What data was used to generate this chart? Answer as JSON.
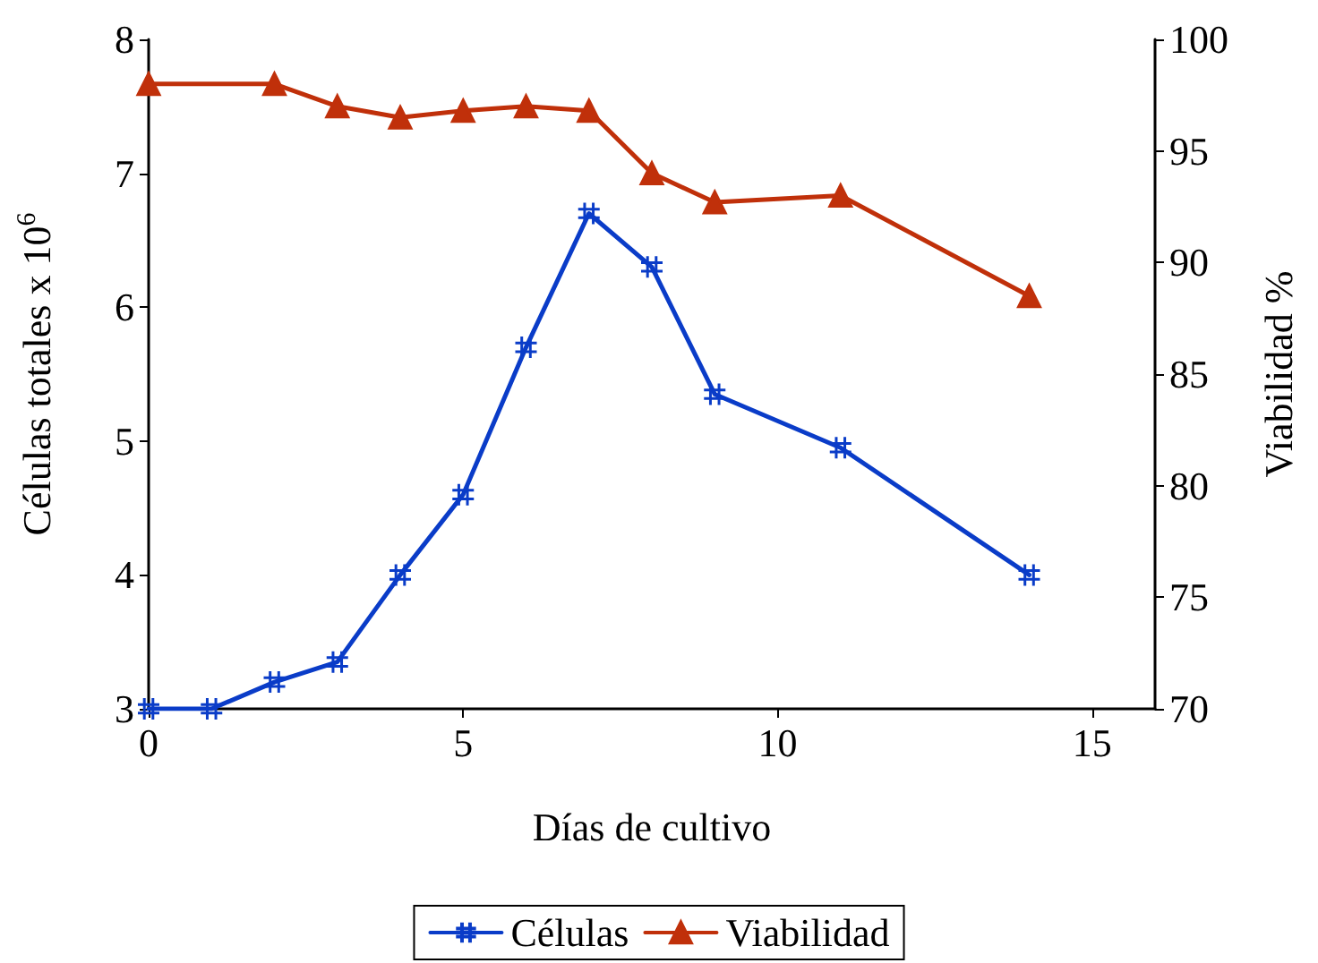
{
  "chart_data": {
    "type": "line",
    "xlabel": "Días de cultivo",
    "ylabel": "Células totales x 10$^{6}$",
    "y2label": "Viabilidad %",
    "x": [
      0,
      1,
      2,
      3,
      4,
      5,
      6,
      7,
      8,
      9,
      11,
      14
    ],
    "series": [
      {
        "name": "Células",
        "color": "#0a3cc8",
        "marker": "cross",
        "values": [
          3.0,
          3.0,
          3.2,
          3.35,
          4.0,
          4.6,
          5.7,
          6.7,
          6.3,
          5.35,
          4.95,
          4.0
        ]
      },
      {
        "name": "Viabilidad",
        "color": "#c0300a",
        "marker": "triangle",
        "axis": "y2",
        "x": [
          0,
          2,
          3,
          4,
          5,
          6,
          7,
          8,
          9,
          11,
          14
        ],
        "values": [
          98,
          98,
          97,
          96.5,
          96.8,
          97,
          96.8,
          94,
          92.7,
          93,
          88.5
        ]
      }
    ],
    "xlim": [
      0,
      16
    ],
    "xticks": [
      0,
      5,
      10,
      15
    ],
    "ylim": [
      3,
      8
    ],
    "yticks": [
      3,
      4,
      5,
      6,
      7,
      8
    ],
    "y2lim": [
      70,
      100
    ],
    "y2ticks": [
      70,
      75,
      80,
      85,
      90,
      95,
      100
    ],
    "grid": false,
    "legend": "bottom"
  }
}
